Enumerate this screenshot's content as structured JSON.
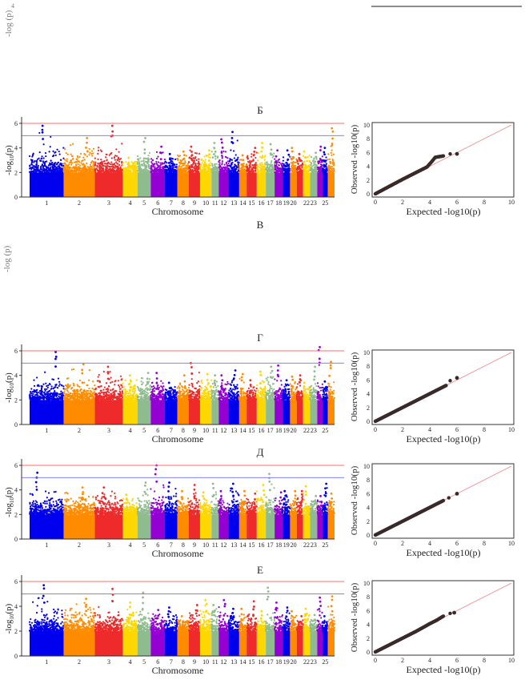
{
  "colors": {
    "chromosome_palette": [
      "#0000ee",
      "#ff8c00",
      "#ee2a2a",
      "#ffd700",
      "#8fbc8f",
      "#9400d3"
    ],
    "suggestive_line": "#8080ff",
    "genomewide_line": "#ff6b6b",
    "qq_points": "#3a2a2a",
    "qq_diagonal": "#f08080"
  },
  "fragments": {
    "top_ylabel": "-log (p)",
    "top_tick": "4",
    "v_ylabel": "-log (p)"
  },
  "chart_data": [
    {
      "panel": "Б",
      "manhattan": {
        "type": "scatter",
        "xlabel": "Chromosome",
        "ylabel": "-log10(p)",
        "yticks": [
          0,
          2,
          4,
          6
        ],
        "ylim": [
          0,
          6
        ],
        "thresholds": {
          "suggestive": 5,
          "genomewide": 6
        },
        "chromosome_ticks": [
          "1",
          "2",
          "3",
          "4",
          "5",
          "6",
          "7",
          "8",
          "9",
          "10",
          "11",
          "12",
          "13",
          "14",
          "15",
          "16",
          "17",
          "18",
          "19",
          "20",
          "",
          "22",
          "23",
          "",
          "25",
          ""
        ],
        "peak_per_chromosome": [
          5.8,
          4.8,
          5.8,
          3.2,
          4.8,
          4.1,
          3.5,
          3.7,
          4.1,
          3.8,
          4.4,
          4.7,
          5.3,
          3.4,
          4.0,
          4.4,
          4.3,
          3.8,
          3.8,
          4.0,
          3.5,
          3.7,
          3.6,
          4.1,
          4.0,
          5.6
        ]
      },
      "qq": {
        "type": "scatter",
        "xlabel": "Expected -log10(p)",
        "ylabel": "Observed -log10(p)",
        "ticks": [
          0,
          2,
          4,
          6,
          8,
          10
        ],
        "xlim": [
          0,
          10
        ],
        "ylim": [
          0,
          10
        ],
        "points": [
          [
            0,
            0
          ],
          [
            1,
            1.05
          ],
          [
            2,
            2.1
          ],
          [
            3,
            3.1
          ],
          [
            3.8,
            3.9
          ],
          [
            4.2,
            4.8
          ],
          [
            4.4,
            5.3
          ],
          [
            5,
            5.5
          ],
          [
            5.5,
            5.8
          ],
          [
            6,
            5.8
          ]
        ]
      }
    },
    {
      "panel": "Г",
      "manhattan": {
        "type": "scatter",
        "xlabel": "Chromosome",
        "ylabel": "-log10(p)",
        "yticks": [
          0,
          2,
          4,
          6
        ],
        "ylim": [
          0,
          6
        ],
        "thresholds": {
          "suggestive": 5,
          "genomewide": 6
        },
        "chromosome_ticks": [
          "1",
          "2",
          "3",
          "4",
          "5",
          "6",
          "7",
          "8",
          "9",
          "10",
          "11",
          "12",
          "13",
          "14",
          "15",
          "16",
          "17",
          "18",
          "19",
          "20",
          "",
          "22",
          "23",
          "",
          "25",
          ""
        ],
        "peak_per_chromosome": [
          5.9,
          4.9,
          4.7,
          4.0,
          4.2,
          4.2,
          3.4,
          4.0,
          5.0,
          4.1,
          4.0,
          4.0,
          4.4,
          4.1,
          3.6,
          4.3,
          4.7,
          4.8,
          3.6,
          3.9,
          4.0,
          3.4,
          4.7,
          6.3,
          3.5,
          5.1
        ]
      },
      "qq": {
        "type": "scatter",
        "xlabel": "Expected -log10(p)",
        "ylabel": "Observed -log10(p)",
        "ticks": [
          0,
          2,
          4,
          6,
          8,
          10
        ],
        "xlim": [
          0,
          10
        ],
        "ylim": [
          0,
          10
        ],
        "points": [
          [
            0,
            0
          ],
          [
            1,
            1
          ],
          [
            2,
            2
          ],
          [
            3,
            3
          ],
          [
            4,
            4
          ],
          [
            5,
            5
          ],
          [
            5.2,
            5.2
          ],
          [
            5.5,
            5.9
          ],
          [
            6,
            6.3
          ]
        ]
      }
    },
    {
      "panel": "Д",
      "manhattan": {
        "type": "scatter",
        "xlabel": "Chromosome",
        "ylabel": "-log10(p)",
        "yticks": [
          0,
          2,
          4,
          6
        ],
        "ylim": [
          0,
          6
        ],
        "thresholds": {
          "suggestive": 5,
          "genomewide": 6
        },
        "chromosome_ticks": [
          "1",
          "2",
          "3",
          "4",
          "5",
          "6",
          "7",
          "8",
          "9",
          "10",
          "11",
          "12",
          "13",
          "14",
          "15",
          "16",
          "17",
          "18",
          "19",
          "20",
          "",
          "22",
          "23",
          "",
          "25",
          ""
        ],
        "peak_per_chromosome": [
          5.4,
          4.2,
          4.2,
          3.6,
          4.6,
          6.0,
          4.6,
          3.9,
          4.4,
          3.8,
          4.5,
          3.9,
          4.5,
          3.9,
          3.7,
          4.4,
          5.3,
          3.8,
          3.9,
          3.9,
          3.9,
          4.3,
          3.5,
          3.5,
          4.5,
          3.7
        ]
      },
      "qq": {
        "type": "scatter",
        "xlabel": "Expected -log10(p)",
        "ylabel": "Observed -log10(p)",
        "ticks": [
          0,
          2,
          4,
          6,
          8,
          10
        ],
        "xlim": [
          0,
          10
        ],
        "ylim": [
          0,
          10
        ],
        "points": [
          [
            0,
            0
          ],
          [
            1,
            1
          ],
          [
            2,
            2
          ],
          [
            3,
            3
          ],
          [
            4,
            4
          ],
          [
            5,
            5
          ],
          [
            5.4,
            5.4
          ],
          [
            6,
            6
          ]
        ]
      }
    },
    {
      "panel": "Е",
      "manhattan": {
        "type": "scatter",
        "xlabel": "Chromosome",
        "ylabel": "-log10(p)",
        "yticks": [
          0,
          2,
          4,
          6
        ],
        "ylim": [
          0,
          6
        ],
        "thresholds": {
          "suggestive": 5,
          "genomewide": 6
        },
        "chromosome_ticks": [
          "1",
          "2",
          "3",
          "4",
          "5",
          "6",
          "7",
          "8",
          "9",
          "10",
          "11",
          "12",
          "13",
          "14",
          "15",
          "16",
          "17",
          "18",
          "19",
          "20",
          "",
          "22",
          "23",
          "",
          "25",
          ""
        ],
        "peak_per_chromosome": [
          5.7,
          4.6,
          5.4,
          4.3,
          5.1,
          3.7,
          3.9,
          3.2,
          4.1,
          4.5,
          4.1,
          4.5,
          3.8,
          3.8,
          4.4,
          3.6,
          5.5,
          4.3,
          3.9,
          3.6,
          3.2,
          3.8,
          3.3,
          4.7,
          3.2,
          4.8
        ]
      },
      "qq": {
        "type": "scatter",
        "xlabel": "Expected -log10(p)",
        "ylabel": "Observed -log10(p)",
        "ticks": [
          0,
          2,
          4,
          6,
          8,
          10
        ],
        "xlim": [
          0,
          10
        ],
        "ylim": [
          0,
          10
        ],
        "points": [
          [
            0,
            0
          ],
          [
            1,
            1
          ],
          [
            2,
            2
          ],
          [
            3,
            3
          ],
          [
            4,
            4.1
          ],
          [
            4.5,
            4.6
          ],
          [
            5,
            5.2
          ],
          [
            5.5,
            5.6
          ],
          [
            5.8,
            5.7
          ]
        ]
      }
    }
  ],
  "extra_panel_labels": [
    "В"
  ]
}
